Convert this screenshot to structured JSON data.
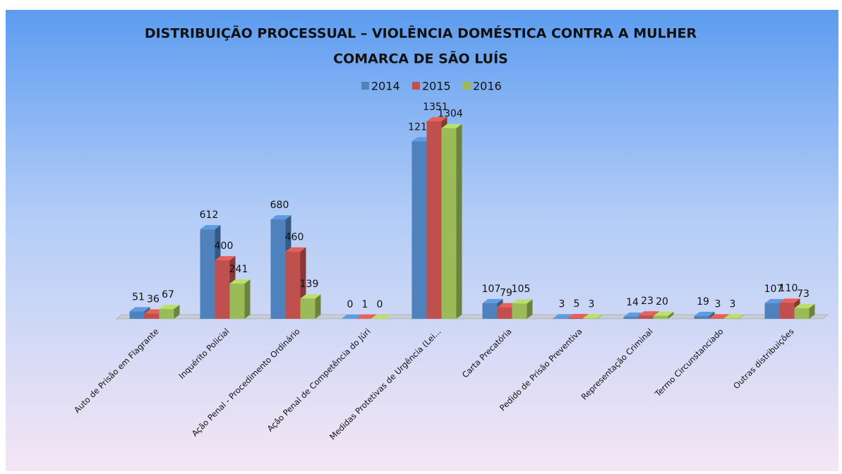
{
  "chart_data": {
    "type": "bar3d",
    "title": "DISTRIBUIÇÃO PROCESSUAL – VIOLÊNCIA DOMÉSTICA CONTRA A MULHER",
    "subtitle": "COMARCA DE SÃO LUÍS",
    "legend": "top",
    "categories": [
      "Auto de Prisão em Flagrante",
      "Inquérito Policial",
      "Ação Penal - Procedimento Ordinário",
      "Ação Penal de Competência do Júri",
      "Medidas Protetivas de Urgência (Lei...",
      "Carta Precatória",
      "Pedido de Prisão Preventiva",
      "Representação Criminal",
      "Termo Circunstanciado",
      "Outras distribuições"
    ],
    "series": [
      {
        "name": "2014",
        "color": "#4f81bd",
        "values": [
          51,
          612,
          680,
          0,
          1214,
          107,
          3,
          14,
          19,
          107
        ]
      },
      {
        "name": "2015",
        "color": "#c0504d",
        "values": [
          36,
          400,
          460,
          1,
          1351,
          79,
          5,
          23,
          3,
          110
        ]
      },
      {
        "name": "2016",
        "color": "#9bbb59",
        "values": [
          67,
          241,
          139,
          0,
          1304,
          105,
          3,
          20,
          3,
          73
        ]
      }
    ]
  }
}
